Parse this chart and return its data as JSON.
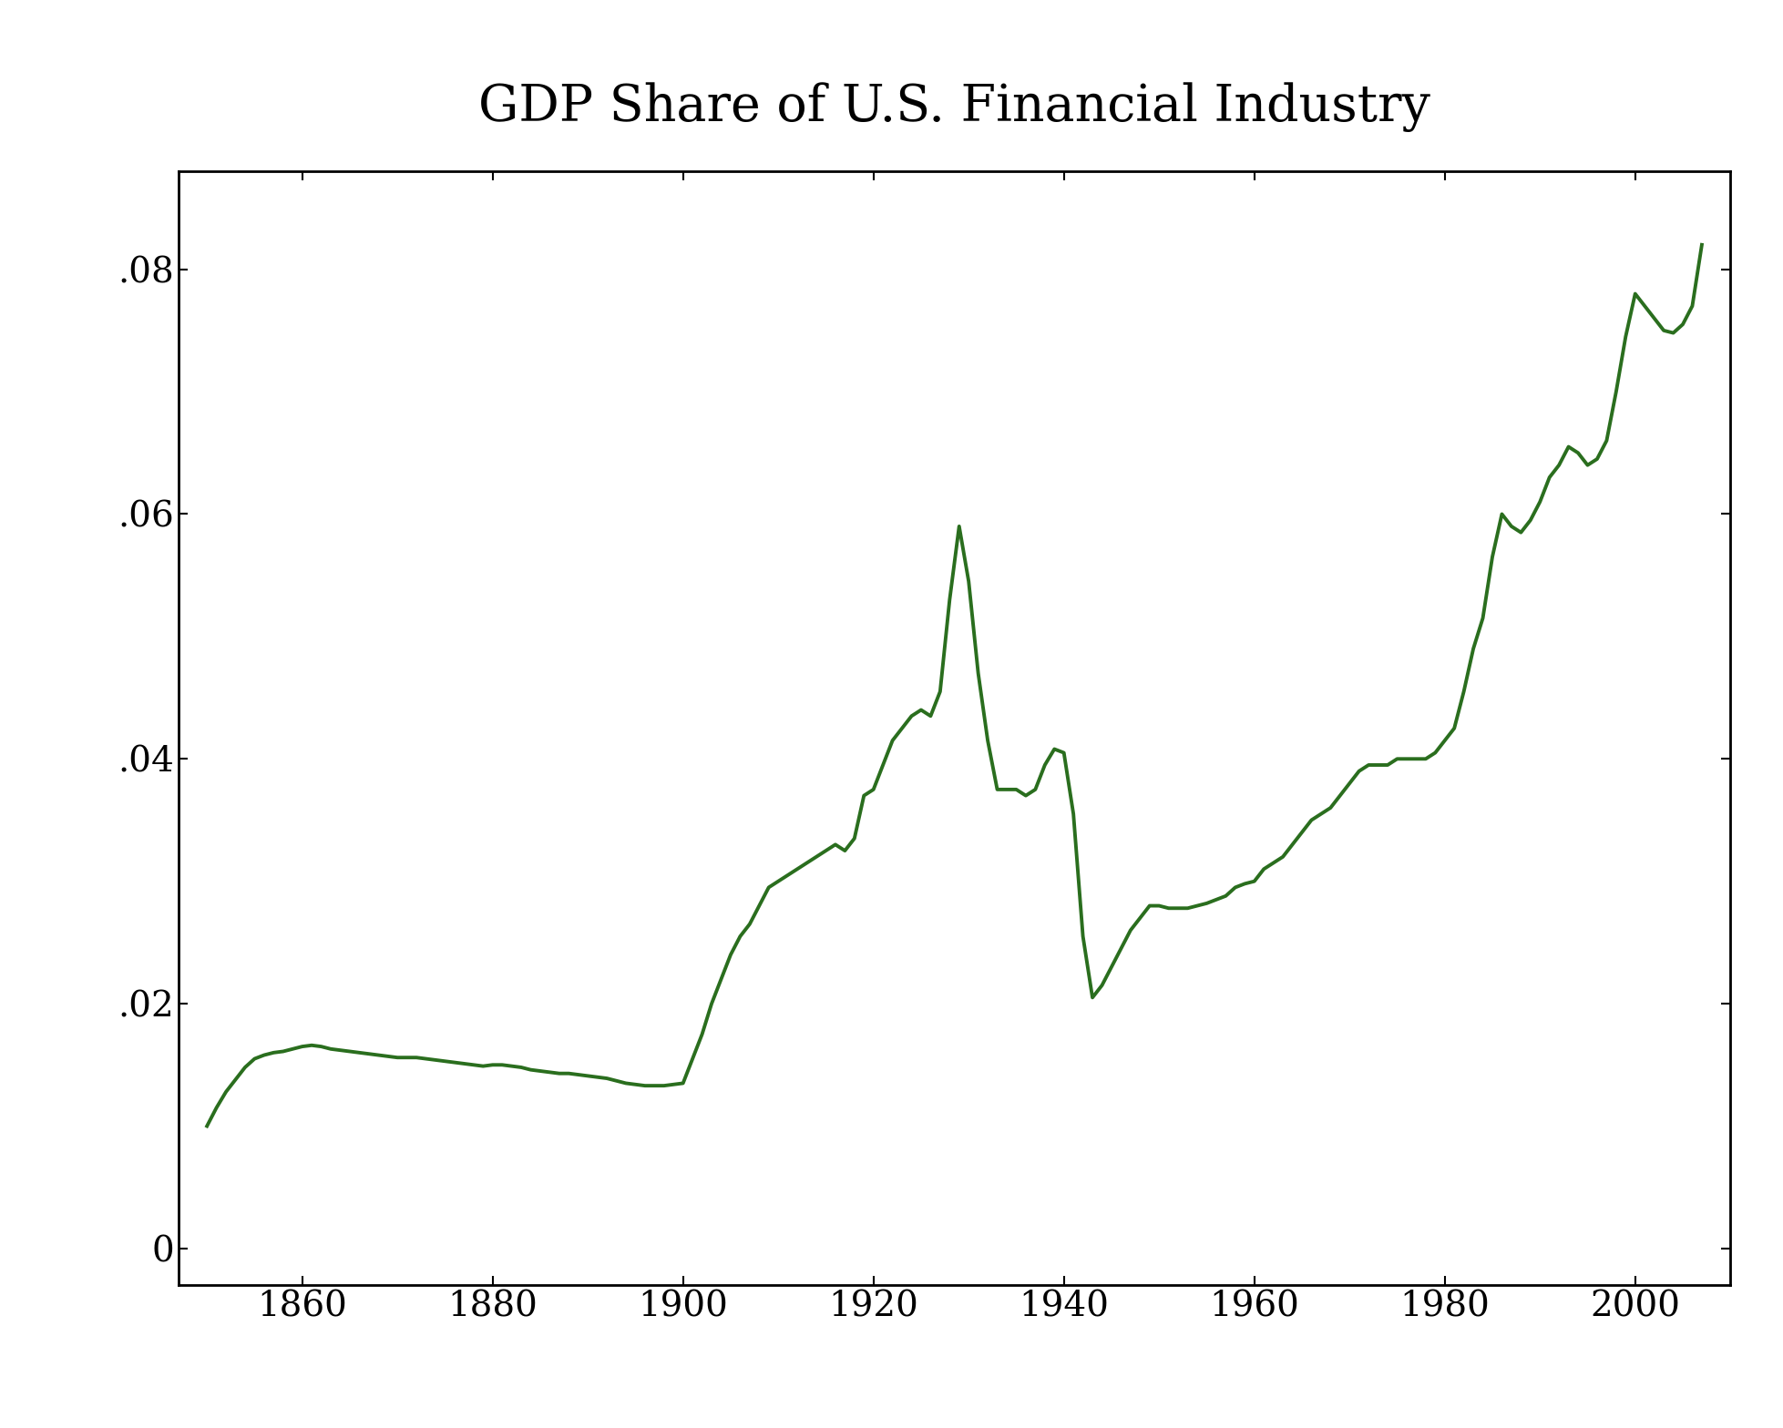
{
  "title": "GDP Share of U.S. Financial Industry",
  "title_fontsize": 40,
  "line_color": "#2a6e1e",
  "line_width": 2.8,
  "background_color": "#ffffff",
  "xlim": [
    1847,
    2010
  ],
  "ylim": [
    -0.003,
    0.088
  ],
  "xticks": [
    1860,
    1880,
    1900,
    1920,
    1940,
    1960,
    1980,
    2000
  ],
  "yticks": [
    0,
    0.02,
    0.04,
    0.06,
    0.08
  ],
  "ytick_labels": [
    "0",
    ".02",
    ".04",
    ".06",
    ".08"
  ],
  "tick_fontsize": 28,
  "years": [
    1850,
    1851,
    1852,
    1853,
    1854,
    1855,
    1856,
    1857,
    1858,
    1859,
    1860,
    1861,
    1862,
    1863,
    1864,
    1865,
    1866,
    1867,
    1868,
    1869,
    1870,
    1871,
    1872,
    1873,
    1874,
    1875,
    1876,
    1877,
    1878,
    1879,
    1880,
    1881,
    1882,
    1883,
    1884,
    1885,
    1886,
    1887,
    1888,
    1889,
    1890,
    1891,
    1892,
    1893,
    1894,
    1895,
    1896,
    1897,
    1898,
    1899,
    1900,
    1901,
    1902,
    1903,
    1904,
    1905,
    1906,
    1907,
    1908,
    1909,
    1910,
    1911,
    1912,
    1913,
    1914,
    1915,
    1916,
    1917,
    1918,
    1919,
    1920,
    1921,
    1922,
    1923,
    1924,
    1925,
    1926,
    1927,
    1928,
    1929,
    1930,
    1931,
    1932,
    1933,
    1934,
    1935,
    1936,
    1937,
    1938,
    1939,
    1940,
    1941,
    1942,
    1943,
    1944,
    1945,
    1946,
    1947,
    1948,
    1949,
    1950,
    1951,
    1952,
    1953,
    1954,
    1955,
    1956,
    1957,
    1958,
    1959,
    1960,
    1961,
    1962,
    1963,
    1964,
    1965,
    1966,
    1967,
    1968,
    1969,
    1970,
    1971,
    1972,
    1973,
    1974,
    1975,
    1976,
    1977,
    1978,
    1979,
    1980,
    1981,
    1982,
    1983,
    1984,
    1985,
    1986,
    1987,
    1988,
    1989,
    1990,
    1991,
    1992,
    1993,
    1994,
    1995,
    1996,
    1997,
    1998,
    1999,
    2000,
    2001,
    2002,
    2003,
    2004,
    2005,
    2006,
    2007
  ],
  "values": [
    0.01,
    0.0115,
    0.0128,
    0.0138,
    0.0148,
    0.0155,
    0.0158,
    0.016,
    0.0161,
    0.0163,
    0.0165,
    0.0166,
    0.0165,
    0.0163,
    0.0162,
    0.0161,
    0.016,
    0.0159,
    0.0158,
    0.0157,
    0.0156,
    0.0156,
    0.0156,
    0.0155,
    0.0154,
    0.0153,
    0.0152,
    0.0151,
    0.015,
    0.0149,
    0.015,
    0.015,
    0.0149,
    0.0148,
    0.0146,
    0.0145,
    0.0144,
    0.0143,
    0.0143,
    0.0142,
    0.0141,
    0.014,
    0.0139,
    0.0137,
    0.0135,
    0.0134,
    0.0133,
    0.0133,
    0.0133,
    0.0134,
    0.0135,
    0.0155,
    0.0175,
    0.02,
    0.022,
    0.024,
    0.0255,
    0.0265,
    0.028,
    0.0295,
    0.03,
    0.0305,
    0.031,
    0.0315,
    0.032,
    0.0325,
    0.033,
    0.0325,
    0.0335,
    0.037,
    0.0375,
    0.0395,
    0.0415,
    0.0425,
    0.0435,
    0.044,
    0.0435,
    0.0455,
    0.053,
    0.059,
    0.0545,
    0.047,
    0.0415,
    0.0375,
    0.0375,
    0.0375,
    0.037,
    0.0375,
    0.0395,
    0.0408,
    0.0405,
    0.0355,
    0.0255,
    0.0205,
    0.0215,
    0.023,
    0.0245,
    0.026,
    0.027,
    0.028,
    0.028,
    0.0278,
    0.0278,
    0.0278,
    0.028,
    0.0282,
    0.0285,
    0.0288,
    0.0295,
    0.0298,
    0.03,
    0.031,
    0.0315,
    0.032,
    0.033,
    0.034,
    0.035,
    0.0355,
    0.036,
    0.037,
    0.038,
    0.039,
    0.0395,
    0.0395,
    0.0395,
    0.04,
    0.04,
    0.04,
    0.04,
    0.0405,
    0.0415,
    0.0425,
    0.0455,
    0.049,
    0.0515,
    0.0565,
    0.06,
    0.059,
    0.0585,
    0.0595,
    0.061,
    0.063,
    0.064,
    0.0655,
    0.065,
    0.064,
    0.0645,
    0.066,
    0.07,
    0.0745,
    0.078,
    0.077,
    0.076,
    0.075,
    0.0748,
    0.0755,
    0.077,
    0.082
  ]
}
